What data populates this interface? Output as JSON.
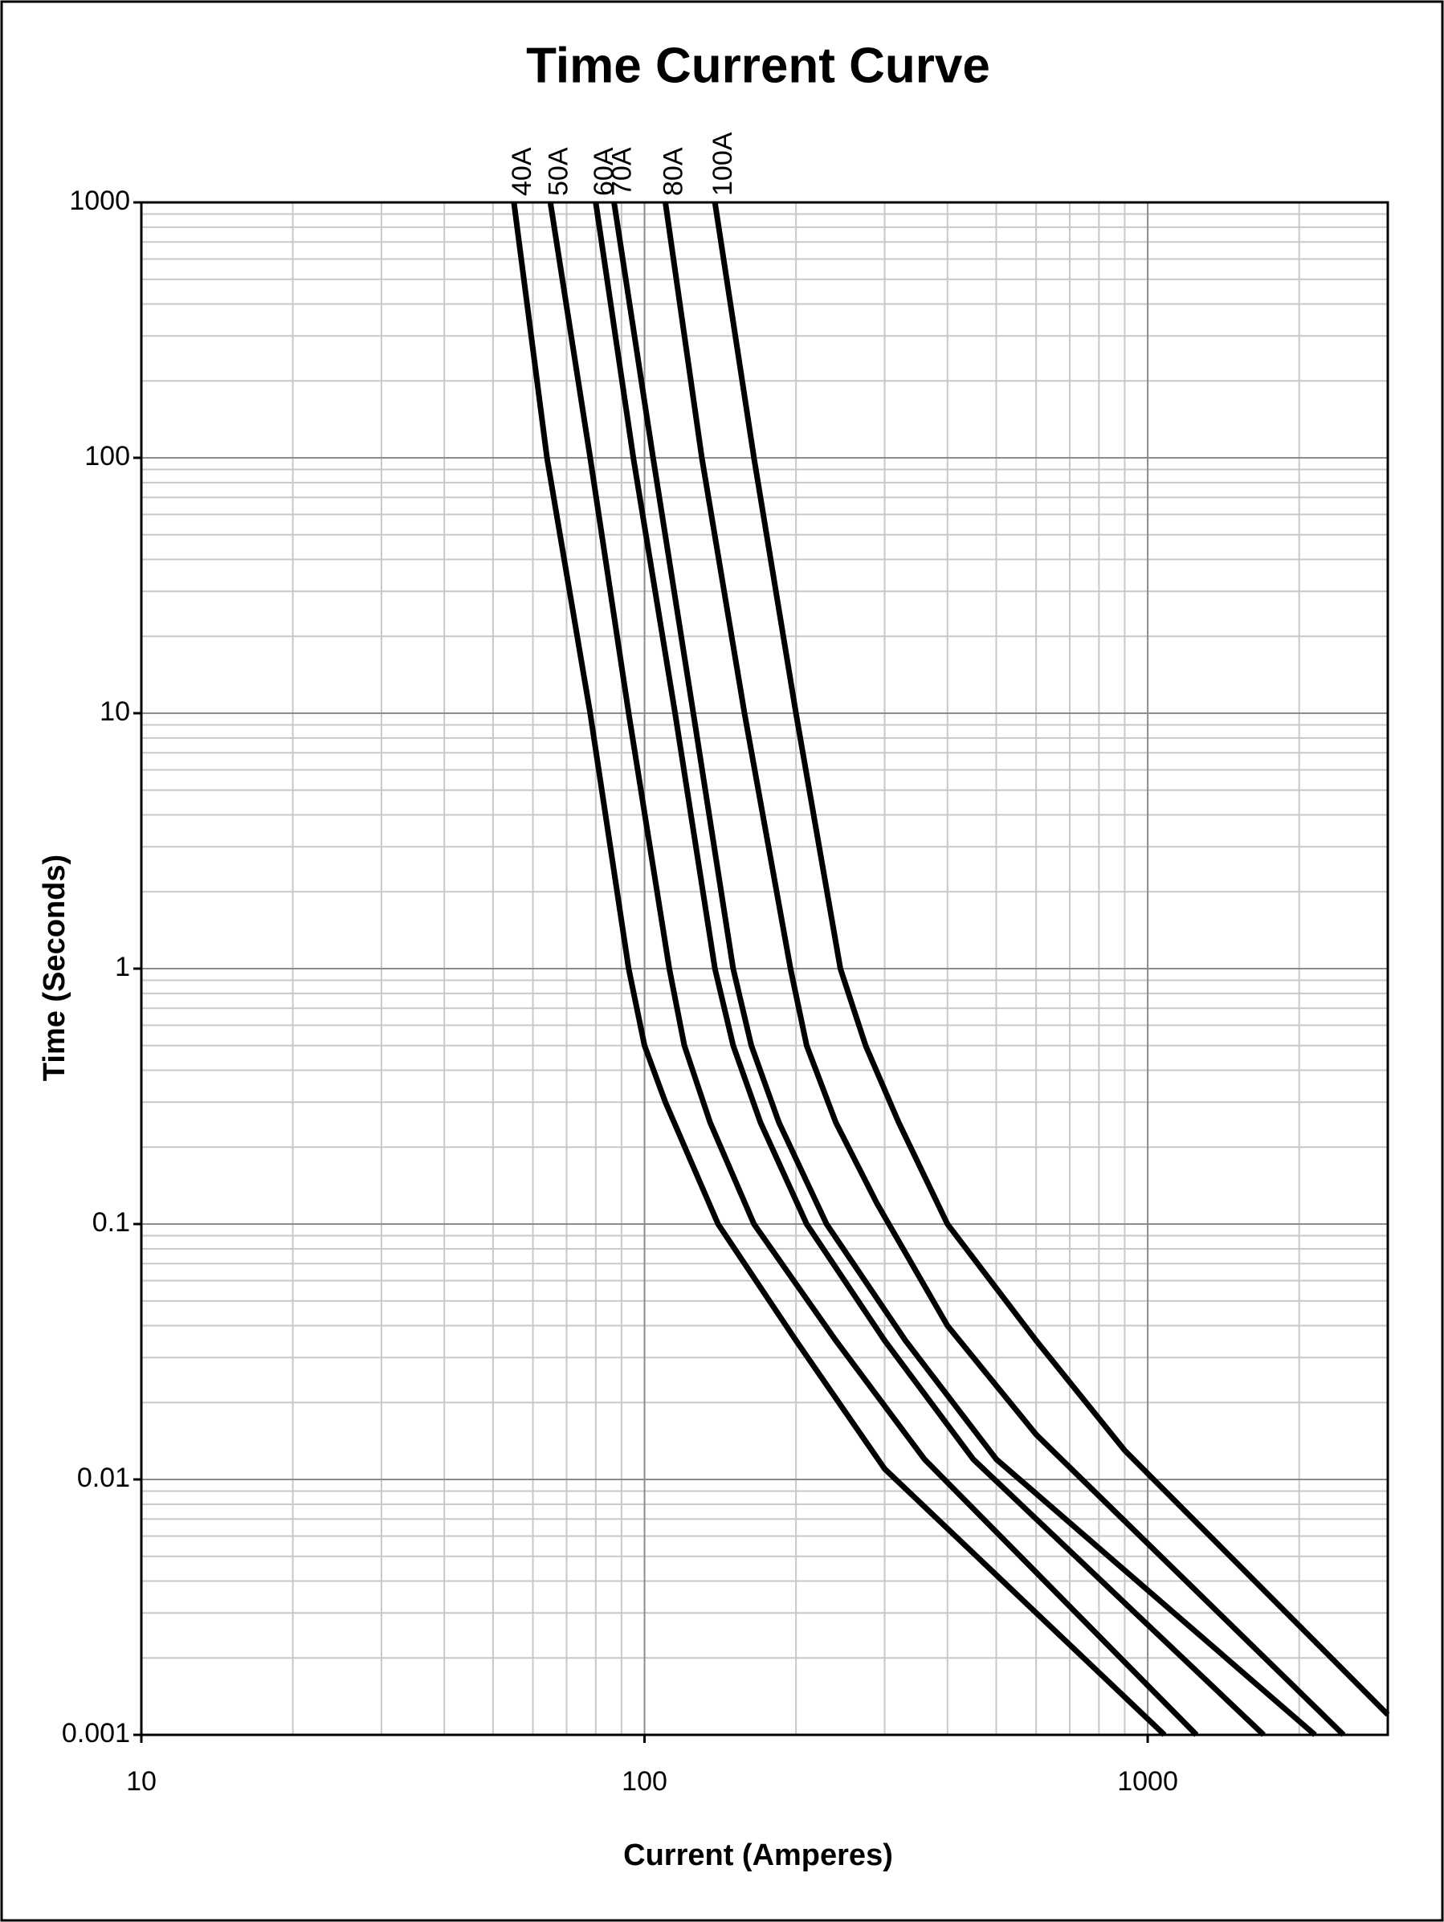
{
  "chart_data": {
    "type": "line",
    "title": "Time Current Curve",
    "x_label": "Current  (Amperes)",
    "y_label": "Time (Seconds)",
    "x_log": true,
    "y_log": true,
    "grid": true,
    "minor_grid": true,
    "xlim": [
      10,
      3000
    ],
    "xticks": [
      10,
      100,
      1000
    ],
    "ylim": [
      0.001,
      1000
    ],
    "yticks": [
      0.001,
      0.01,
      0.1,
      1,
      10,
      100,
      1000
    ],
    "series": [
      {
        "name": "40A",
        "color": "#000000",
        "x": [
          55,
          64,
          78,
          93,
          100,
          110,
          140,
          200,
          300,
          1080
        ],
        "values": [
          1000,
          100,
          10,
          1,
          0.5,
          0.3,
          0.1,
          0.035,
          0.011,
          0.001
        ]
      },
      {
        "name": "50A",
        "color": "#000000",
        "x": [
          65,
          78,
          93,
          112,
          120,
          135,
          165,
          240,
          360,
          1250
        ],
        "values": [
          1000,
          100,
          10,
          1,
          0.5,
          0.25,
          0.1,
          0.035,
          0.012,
          0.001
        ]
      },
      {
        "name": "60A",
        "color": "#000000",
        "x": [
          80,
          95,
          115,
          138,
          150,
          170,
          210,
          300,
          450,
          1700
        ],
        "values": [
          1000,
          100,
          10,
          1,
          0.5,
          0.25,
          0.1,
          0.035,
          0.012,
          0.001
        ]
      },
      {
        "name": "70A",
        "color": "#000000",
        "x": [
          87,
          104,
          125,
          150,
          163,
          185,
          230,
          330,
          500,
          2150
        ],
        "values": [
          1000,
          100,
          10,
          1,
          0.5,
          0.25,
          0.1,
          0.035,
          0.012,
          0.001
        ]
      },
      {
        "name": "80A",
        "color": "#000000",
        "x": [
          110,
          130,
          158,
          195,
          210,
          240,
          290,
          400,
          600,
          2450
        ],
        "values": [
          1000,
          100,
          10,
          1,
          0.5,
          0.25,
          0.12,
          0.04,
          0.015,
          0.001
        ]
      },
      {
        "name": "100A",
        "color": "#000000",
        "x": [
          138,
          165,
          200,
          245,
          275,
          320,
          400,
          600,
          900,
          3000
        ],
        "values": [
          1000,
          100,
          10,
          1,
          0.5,
          0.25,
          0.1,
          0.035,
          0.013,
          0.0012
        ]
      }
    ]
  }
}
